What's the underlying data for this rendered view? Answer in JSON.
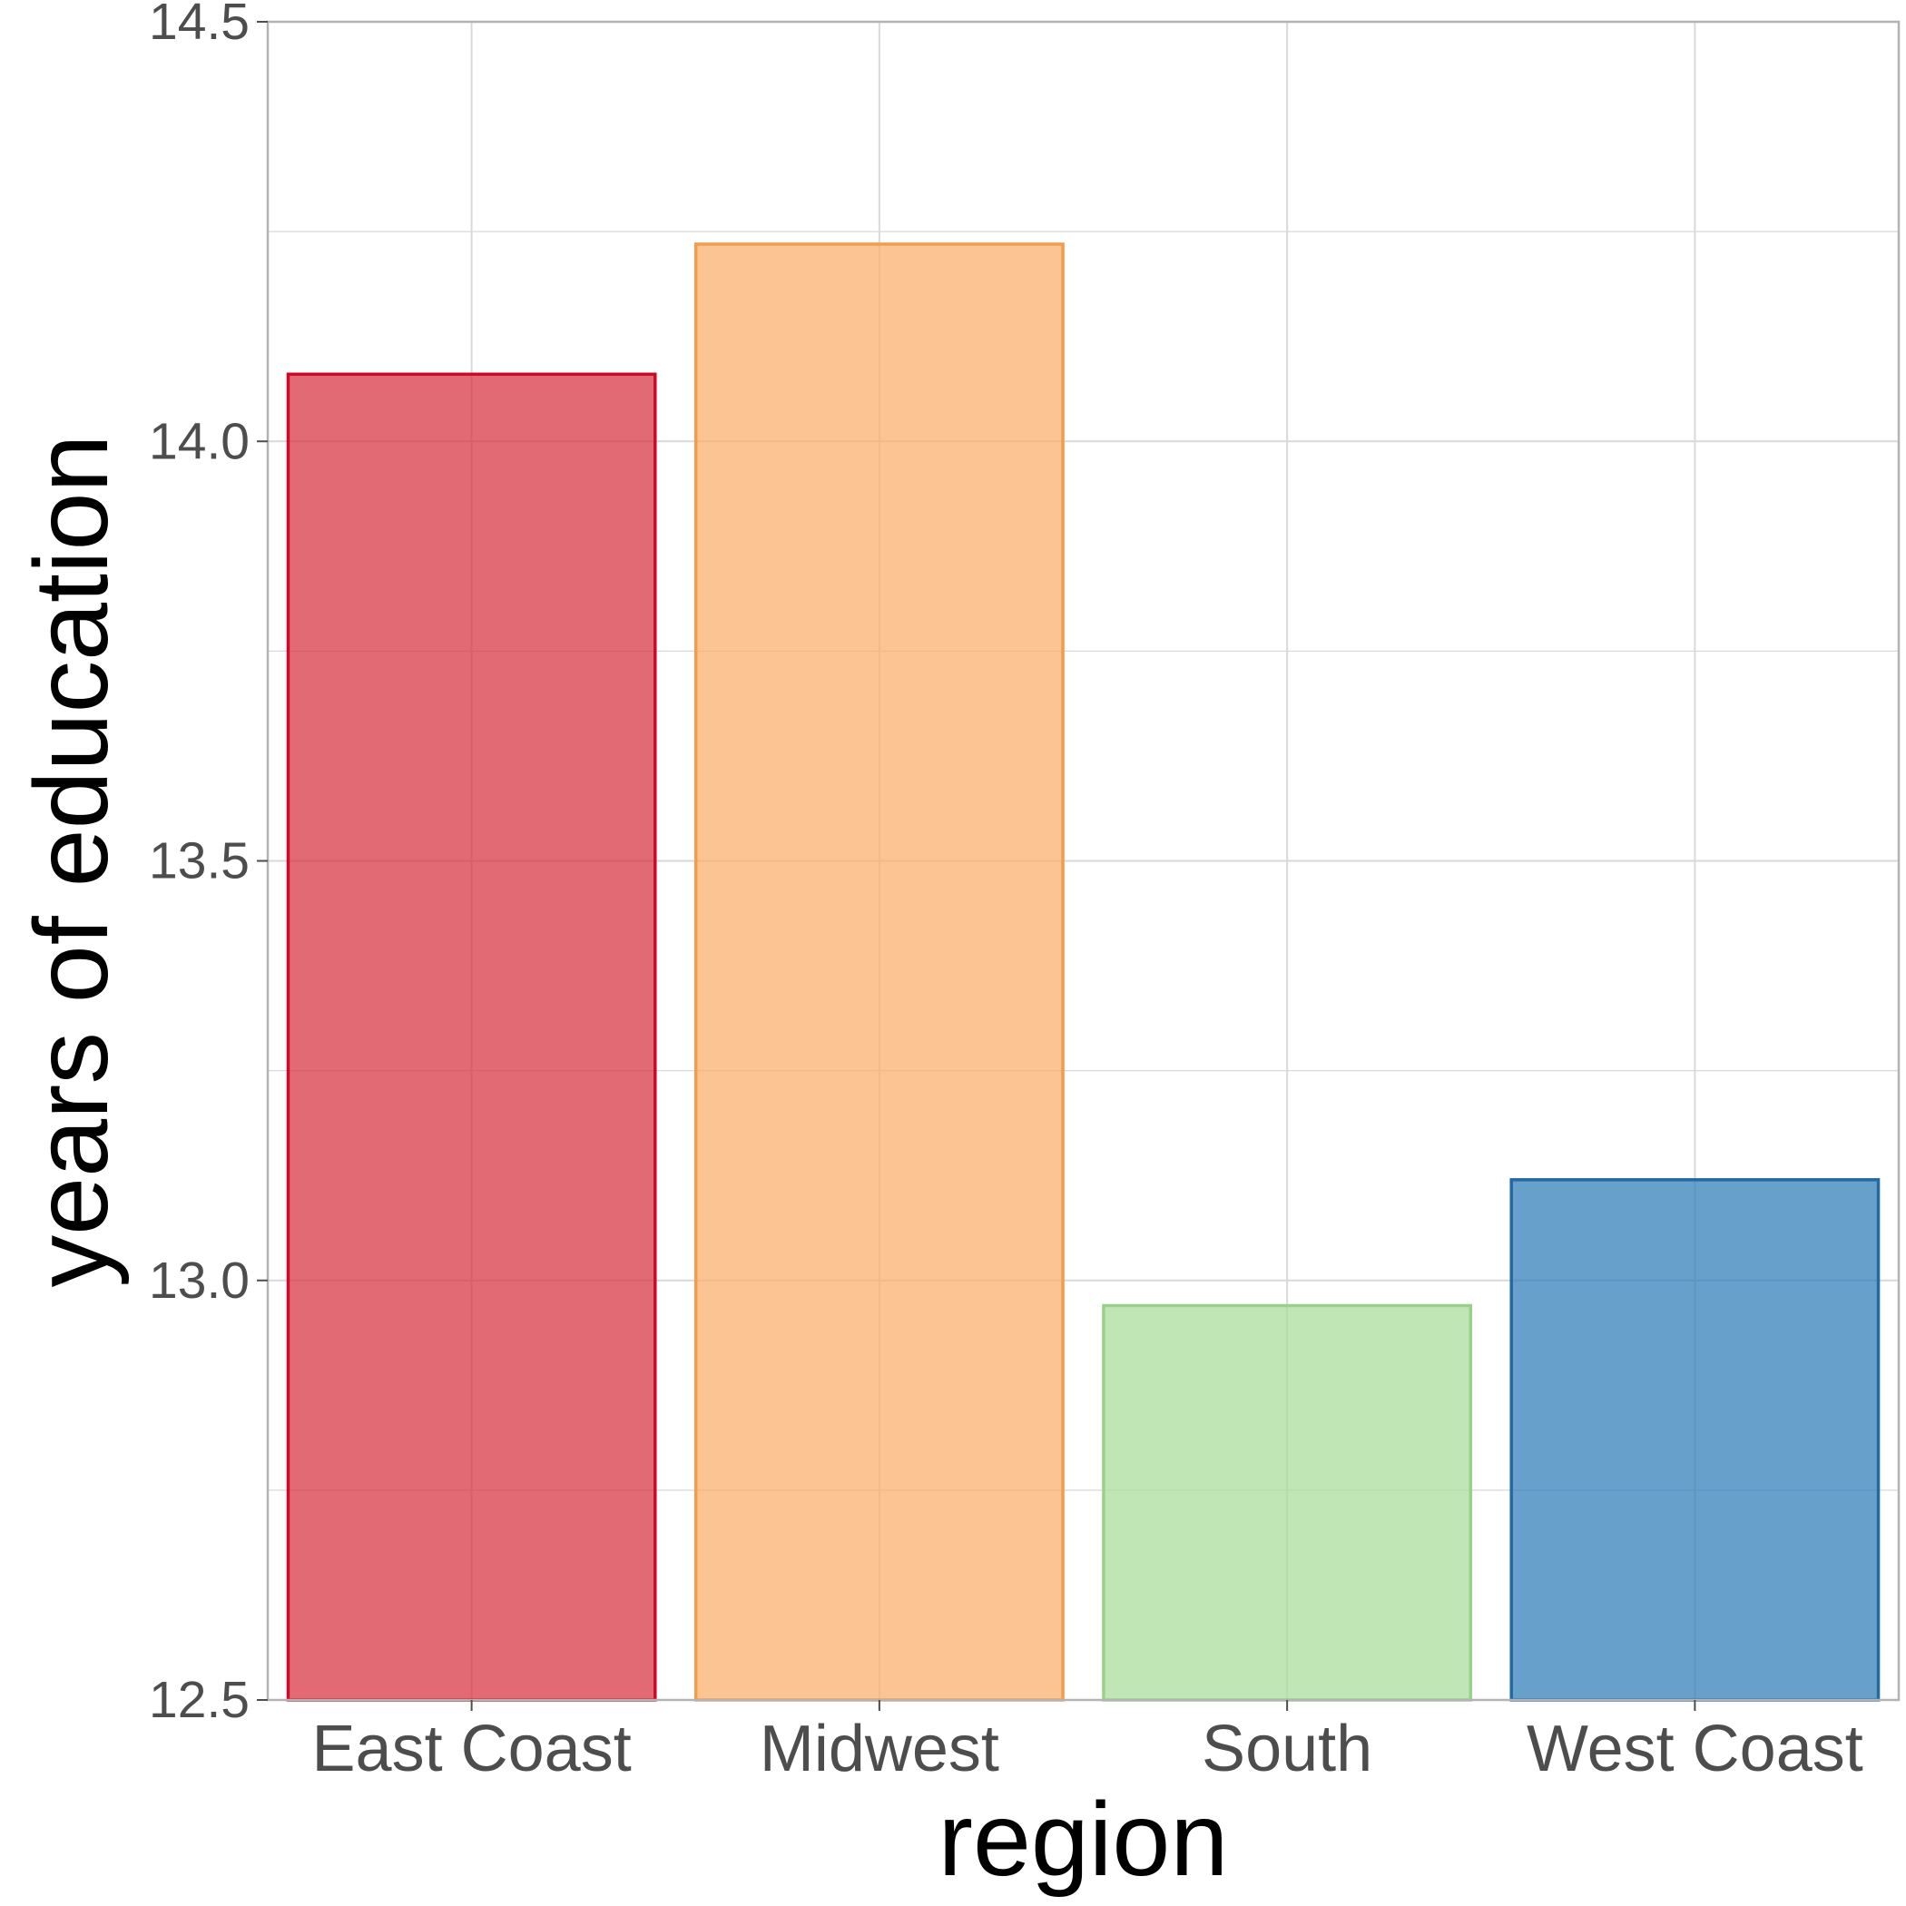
{
  "chart_data": {
    "type": "bar",
    "title": "",
    "xlabel": "region",
    "ylabel": "years of education",
    "categories": [
      "East Coast",
      "Midwest",
      "South",
      "West Coast"
    ],
    "values": [
      14.08,
      14.235,
      12.97,
      13.12
    ],
    "ylim": [
      12.5,
      14.5
    ],
    "yticks": [
      12.5,
      13.0,
      13.5,
      14.0,
      14.5
    ],
    "ytick_labels": [
      "12.5",
      "13.0",
      "13.5",
      "14.0",
      "14.5"
    ],
    "grid": true,
    "legend": "none",
    "colors": {
      "fills": [
        "#d7303f",
        "#fbad6a",
        "#a9dd9a",
        "#2b7bb7"
      ],
      "outlines": [
        "#cc0a25",
        "#f49c4d",
        "#98d28a",
        "#2369a4"
      ],
      "fill_opacity": 0.72,
      "grid": "#d9d9d9",
      "panel_border": "#b3b3b3"
    }
  }
}
